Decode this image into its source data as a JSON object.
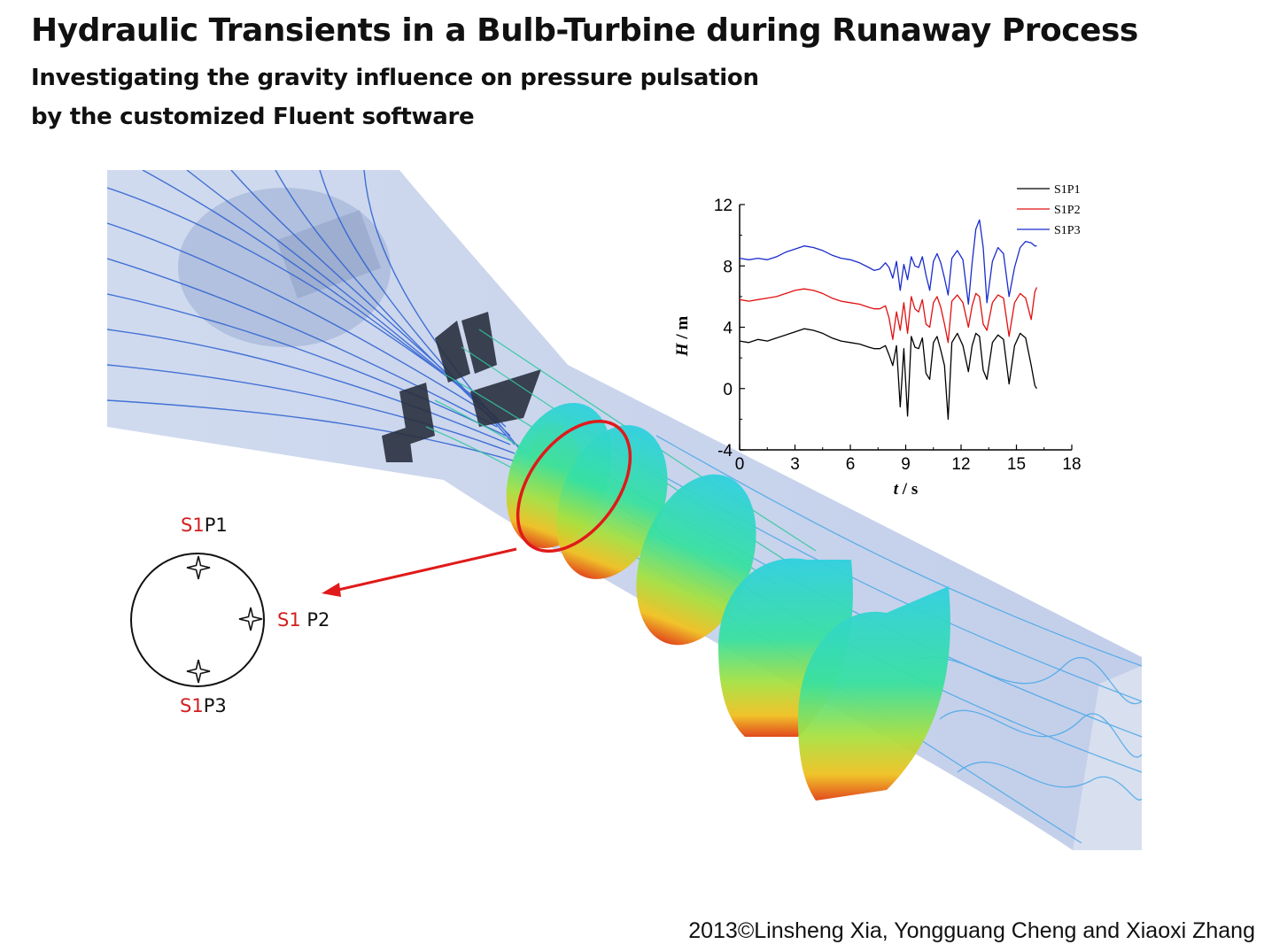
{
  "title": "Hydraulic Transients in a Bulb-Turbine during Runaway Process",
  "subtitle_line1": "Investigating the gravity influence on pressure pulsation",
  "subtitle_line2": "by the customized Fluent software",
  "copyright": "2013©Linsheng Xia, Yongguang Cheng and Xiaoxi Zhang",
  "sensors": {
    "p1": {
      "prefix": "S1",
      "suffix": "P1"
    },
    "p2": {
      "prefix": "S1",
      "suffix": " P2"
    },
    "p3": {
      "prefix": "S1",
      "suffix": "P3"
    }
  },
  "colors": {
    "s1p1": "#000000",
    "s1p2": "#e01010",
    "s1p3": "#1a2ccc",
    "highlight": "#e01a1a"
  },
  "chart_data": {
    "type": "line",
    "xlabel_italic": "t",
    "xlabel_unit": " / s",
    "ylabel_italic": "H",
    "ylabel_unit": " / m",
    "xlim": [
      0,
      18
    ],
    "ylim": [
      -4,
      12
    ],
    "xticks": [
      0,
      3,
      6,
      9,
      12,
      15,
      18
    ],
    "yticks": [
      -4,
      0,
      4,
      8,
      12
    ],
    "legend_position": "top-right",
    "series": [
      {
        "name": "S1P1",
        "color": "#000000",
        "x": [
          0,
          0.5,
          1,
          1.5,
          2,
          2.5,
          3,
          3.5,
          4,
          4.5,
          5,
          5.5,
          6,
          6.5,
          7,
          7.3,
          7.6,
          7.9,
          8.1,
          8.3,
          8.5,
          8.7,
          8.9,
          9.1,
          9.3,
          9.5,
          9.7,
          9.9,
          10.1,
          10.3,
          10.5,
          10.7,
          10.9,
          11.1,
          11.3,
          11.5,
          11.8,
          12.1,
          12.4,
          12.6,
          12.8,
          13,
          13.2,
          13.4,
          13.7,
          14,
          14.3,
          14.6,
          14.9,
          15.2,
          15.5,
          15.8,
          16,
          16.1
        ],
        "y": [
          3.1,
          3.0,
          3.2,
          3.1,
          3.3,
          3.5,
          3.7,
          3.9,
          3.8,
          3.6,
          3.3,
          3.1,
          3.0,
          2.9,
          2.7,
          2.6,
          2.6,
          2.8,
          2.2,
          1.5,
          2.8,
          -1.2,
          2.6,
          -1.8,
          3.4,
          2.7,
          2.6,
          3.3,
          1.0,
          0.6,
          3.0,
          3.4,
          2.5,
          1.5,
          -2.0,
          3.0,
          3.6,
          2.8,
          1.1,
          2.8,
          3.6,
          3.4,
          1.2,
          0.6,
          3.0,
          3.5,
          3.2,
          0.3,
          2.8,
          3.6,
          3.3,
          1.5,
          0.2,
          0.0
        ]
      },
      {
        "name": "S1P2",
        "color": "#e01010",
        "x": [
          0,
          0.5,
          1,
          1.5,
          2,
          2.5,
          3,
          3.5,
          4,
          4.5,
          5,
          5.5,
          6,
          6.5,
          7,
          7.3,
          7.6,
          7.9,
          8.1,
          8.3,
          8.5,
          8.7,
          8.9,
          9.1,
          9.3,
          9.5,
          9.7,
          9.9,
          10.1,
          10.3,
          10.5,
          10.7,
          10.9,
          11.1,
          11.3,
          11.5,
          11.8,
          12.1,
          12.4,
          12.6,
          12.8,
          13,
          13.2,
          13.4,
          13.7,
          14,
          14.3,
          14.6,
          14.9,
          15.2,
          15.5,
          15.8,
          16,
          16.1
        ],
        "y": [
          5.8,
          5.7,
          5.8,
          5.9,
          6.0,
          6.2,
          6.4,
          6.5,
          6.4,
          6.2,
          5.9,
          5.7,
          5.6,
          5.5,
          5.3,
          5.2,
          5.2,
          5.4,
          4.6,
          3.2,
          5.0,
          3.8,
          5.6,
          3.6,
          6.0,
          5.2,
          5.0,
          5.8,
          4.2,
          4.0,
          5.6,
          6.0,
          5.3,
          4.2,
          3.0,
          5.7,
          6.1,
          5.6,
          4.0,
          5.4,
          6.2,
          6.0,
          4.2,
          3.8,
          5.6,
          6.1,
          5.9,
          3.4,
          5.6,
          6.2,
          5.9,
          4.5,
          6.3,
          6.6
        ]
      },
      {
        "name": "S1P3",
        "color": "#1a2ccc",
        "x": [
          0,
          0.5,
          1,
          1.5,
          2,
          2.5,
          3,
          3.5,
          4,
          4.5,
          5,
          5.5,
          6,
          6.5,
          7,
          7.3,
          7.6,
          7.9,
          8.1,
          8.3,
          8.5,
          8.7,
          8.9,
          9.1,
          9.3,
          9.5,
          9.7,
          9.9,
          10.1,
          10.3,
          10.5,
          10.7,
          10.9,
          11.1,
          11.3,
          11.5,
          11.8,
          12.1,
          12.4,
          12.6,
          12.8,
          13,
          13.2,
          13.4,
          13.7,
          14,
          14.3,
          14.6,
          14.9,
          15.2,
          15.5,
          15.8,
          16,
          16.1
        ],
        "y": [
          8.5,
          8.4,
          8.5,
          8.4,
          8.6,
          8.9,
          9.1,
          9.3,
          9.2,
          9.0,
          8.7,
          8.5,
          8.4,
          8.2,
          7.9,
          7.7,
          7.8,
          8.2,
          7.9,
          7.2,
          8.3,
          6.4,
          8.1,
          7.1,
          8.6,
          8.0,
          7.9,
          8.6,
          7.4,
          6.4,
          8.3,
          8.8,
          8.2,
          7.2,
          6.1,
          8.5,
          9.0,
          8.4,
          5.5,
          8.2,
          10.4,
          11.0,
          9.2,
          5.6,
          8.3,
          9.2,
          8.8,
          6.0,
          7.9,
          9.2,
          9.6,
          9.5,
          9.3,
          9.3
        ]
      }
    ]
  }
}
